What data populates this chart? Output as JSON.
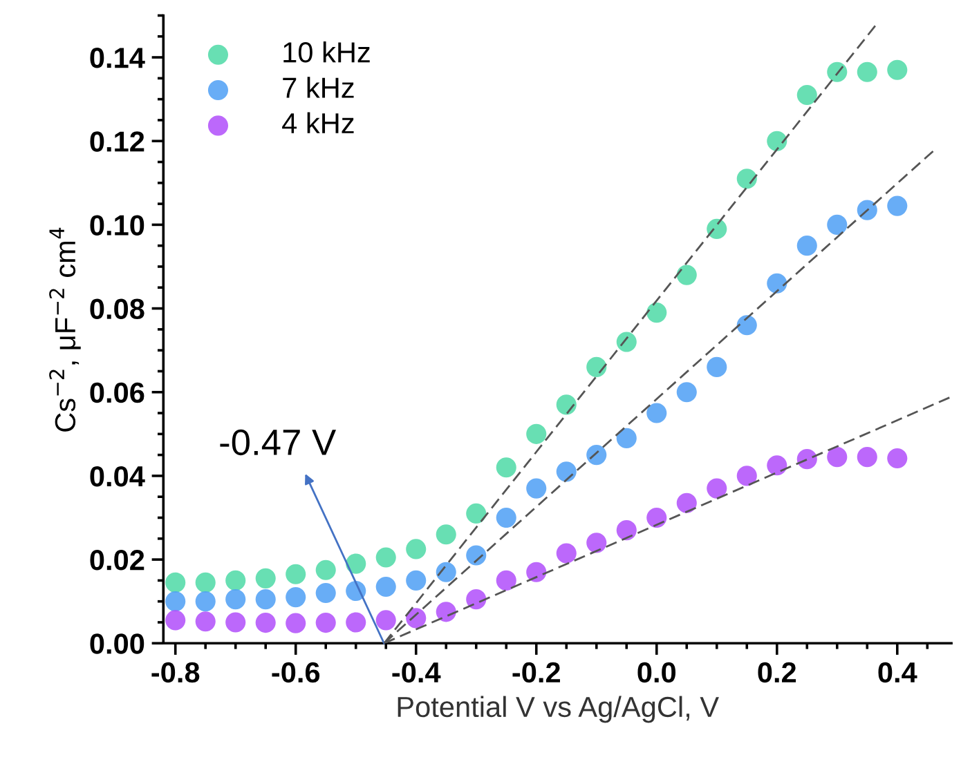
{
  "chart_data": {
    "type": "scatter",
    "xlabel": "Potential V vs Ag/AgCl, V",
    "ylabel": "Cs$^{−2}$, μF$^{−2}$ cm$^{4}$",
    "x": [
      -0.8,
      -0.75,
      -0.7,
      -0.65,
      -0.6,
      -0.55,
      -0.5,
      -0.45,
      -0.4,
      -0.35,
      -0.3,
      -0.25,
      -0.2,
      -0.15,
      -0.1,
      -0.05,
      0.0,
      0.05,
      0.1,
      0.15,
      0.2,
      0.25,
      0.3,
      0.35,
      0.4
    ],
    "series": [
      {
        "name": "10 kHz",
        "color": "#4dd9a6",
        "values": [
          0.0145,
          0.0145,
          0.015,
          0.0155,
          0.0165,
          0.0175,
          0.019,
          0.0205,
          0.0225,
          0.026,
          0.031,
          0.042,
          0.05,
          0.057,
          0.066,
          0.072,
          0.079,
          0.088,
          0.099,
          0.111,
          0.12,
          0.131,
          0.1365,
          0.1365,
          0.137
        ]
      },
      {
        "name": "7 kHz",
        "color": "#4d9ff5",
        "values": [
          0.01,
          0.01,
          0.0105,
          0.0105,
          0.011,
          0.012,
          0.0125,
          0.0135,
          0.015,
          0.017,
          0.021,
          0.03,
          0.037,
          0.041,
          0.045,
          0.049,
          0.055,
          0.06,
          0.066,
          0.076,
          0.086,
          0.095,
          0.1,
          0.1035,
          0.1045
        ]
      },
      {
        "name": "4 kHz",
        "color": "#b04dfa",
        "values": [
          0.0055,
          0.0052,
          0.005,
          0.0049,
          0.0048,
          0.0049,
          0.005,
          0.0055,
          0.006,
          0.0075,
          0.0105,
          0.015,
          0.017,
          0.0215,
          0.024,
          0.027,
          0.03,
          0.0335,
          0.037,
          0.04,
          0.0425,
          0.044,
          0.0445,
          0.0445,
          0.0442
        ]
      },
      {
        "type": "line",
        "color": "#555555",
        "line_style": "dashed",
        "marker": "none",
        "x": [
          -0.453,
          0.366
        ],
        "values": [
          0,
          0.148
        ]
      },
      {
        "type": "line",
        "color": "#555555",
        "line_style": "dashed",
        "marker": "none",
        "x": [
          -0.453,
          0.466
        ],
        "values": [
          0,
          0.1184
        ]
      },
      {
        "type": "line",
        "color": "#555555",
        "line_style": "dashed",
        "marker": "none",
        "x": [
          -0.453,
          0.49
        ],
        "values": [
          0,
          0.0589
        ]
      }
    ],
    "marker": "circle",
    "legend": "top left",
    "grid": false,
    "xlim": [
      -0.82,
      0.49
    ],
    "xticks": [
      -0.8,
      -0.6,
      -0.4,
      -0.2,
      {
        "value": 0,
        "label": "0.0"
      },
      0.2,
      0.4
    ],
    "ylim": [
      0,
      0.15
    ],
    "yticks": [
      {
        "value": 0,
        "label": "0.00"
      },
      {
        "value": 0.02,
        "label": "0.02"
      },
      {
        "value": 0.04,
        "label": "0.04"
      },
      {
        "value": 0.06,
        "label": "0.06"
      },
      {
        "value": 0.08,
        "label": "0.08"
      },
      {
        "value": 0.1,
        "label": "0.10"
      },
      {
        "value": 0.12,
        "label": "0.12"
      },
      {
        "value": 0.14,
        "label": "0.14"
      }
    ],
    "annotations": [
      "-0.47 V"
    ]
  }
}
